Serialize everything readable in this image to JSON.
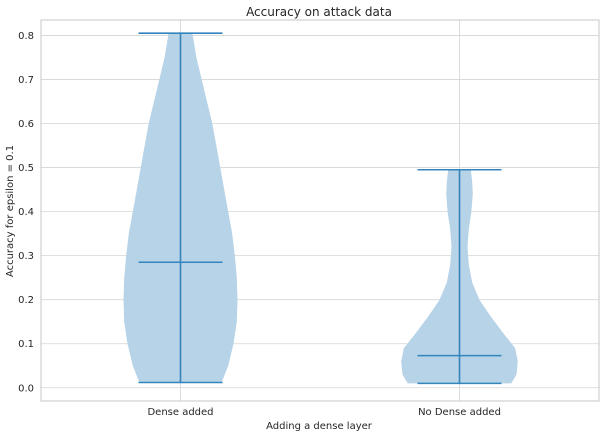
{
  "chart_data": {
    "type": "violin",
    "title": "Accuracy on attack data",
    "xlabel": "Adding a dense layer",
    "ylabel": "Accuracy for epsilon = 0.1",
    "ylim": [
      -0.03,
      0.835
    ],
    "yticks": [
      0.0,
      0.1,
      0.2,
      0.3,
      0.4,
      0.5,
      0.6,
      0.7,
      0.8
    ],
    "ytick_labels": [
      "0.0",
      "0.1",
      "0.2",
      "0.3",
      "0.4",
      "0.5",
      "0.6",
      "0.7",
      "0.8"
    ],
    "categories": [
      "Dense added",
      "No Dense added"
    ],
    "grid": true,
    "colors": {
      "violin_fill": "#b7d3e7",
      "lines": "#3484bd",
      "grid": "#d5d5d5",
      "spine": "#c7c7c7"
    },
    "series": [
      {
        "category": "Dense added",
        "min": 0.012,
        "median": 0.285,
        "max": 0.805,
        "density_profile": [
          [
            0.012,
            0.31
          ],
          [
            0.05,
            0.36
          ],
          [
            0.1,
            0.4
          ],
          [
            0.15,
            0.425
          ],
          [
            0.2,
            0.43
          ],
          [
            0.25,
            0.425
          ],
          [
            0.3,
            0.41
          ],
          [
            0.35,
            0.39
          ],
          [
            0.4,
            0.36
          ],
          [
            0.45,
            0.33
          ],
          [
            0.5,
            0.3
          ],
          [
            0.55,
            0.27
          ],
          [
            0.6,
            0.24
          ],
          [
            0.65,
            0.2
          ],
          [
            0.7,
            0.16
          ],
          [
            0.75,
            0.12
          ],
          [
            0.805,
            0.09
          ]
        ]
      },
      {
        "category": "No Dense added",
        "min": 0.01,
        "median": 0.073,
        "max": 0.495,
        "density_profile": [
          [
            0.01,
            0.39
          ],
          [
            0.03,
            0.43
          ],
          [
            0.06,
            0.44
          ],
          [
            0.09,
            0.42
          ],
          [
            0.12,
            0.34
          ],
          [
            0.16,
            0.24
          ],
          [
            0.2,
            0.15
          ],
          [
            0.24,
            0.095
          ],
          [
            0.28,
            0.07
          ],
          [
            0.32,
            0.06
          ],
          [
            0.36,
            0.07
          ],
          [
            0.4,
            0.09
          ],
          [
            0.44,
            0.1
          ],
          [
            0.47,
            0.095
          ],
          [
            0.495,
            0.085
          ]
        ]
      }
    ]
  }
}
